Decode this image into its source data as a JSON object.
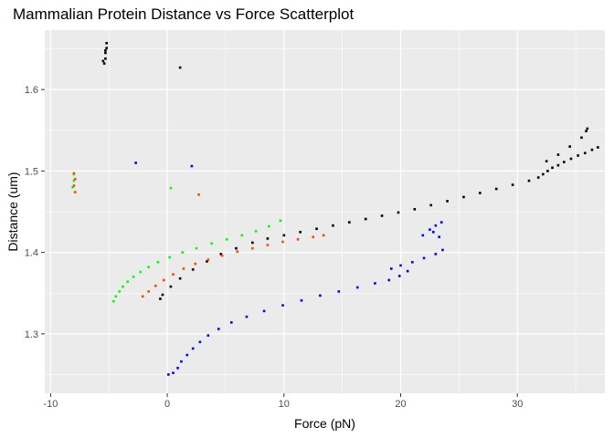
{
  "chart_data": {
    "type": "scatter",
    "title": "Mammalian Protein Distance vs Force Scatterplot",
    "xlabel": "Force (pN)",
    "ylabel": "Distance (um)",
    "xlim": [
      -10.5,
      37.5
    ],
    "ylim": [
      1.227,
      1.673
    ],
    "x_ticks": [
      -10,
      0,
      10,
      20,
      30
    ],
    "y_ticks": [
      1.3,
      1.4,
      1.5,
      1.6
    ],
    "grid": true,
    "background": "#ebebeb",
    "grid_color": "#ffffff",
    "series": [
      {
        "color": "#000000",
        "points": [
          [
            -5.4,
            1.632
          ],
          [
            -5.3,
            1.638
          ],
          [
            -5.3,
            1.645
          ],
          [
            -5.2,
            1.651
          ],
          [
            -5.2,
            1.657
          ],
          [
            -5.5,
            1.635
          ],
          [
            -5.3,
            1.648
          ],
          [
            1.1,
            1.627
          ],
          [
            -0.6,
            1.343
          ],
          [
            -0.4,
            1.348
          ],
          [
            0.3,
            1.358
          ],
          [
            1.1,
            1.368
          ],
          [
            2.2,
            1.379
          ],
          [
            3.4,
            1.389
          ],
          [
            4.6,
            1.398
          ],
          [
            5.9,
            1.405
          ],
          [
            7.3,
            1.412
          ],
          [
            8.6,
            1.417
          ],
          [
            10.0,
            1.421
          ],
          [
            11.4,
            1.425
          ],
          [
            12.8,
            1.429
          ],
          [
            14.2,
            1.433
          ],
          [
            15.6,
            1.437
          ],
          [
            17.0,
            1.441
          ],
          [
            18.4,
            1.445
          ],
          [
            19.8,
            1.449
          ],
          [
            21.2,
            1.453
          ],
          [
            22.6,
            1.458
          ],
          [
            24.0,
            1.463
          ],
          [
            25.4,
            1.468
          ],
          [
            26.8,
            1.473
          ],
          [
            28.2,
            1.478
          ],
          [
            29.6,
            1.483
          ],
          [
            31.0,
            1.488
          ],
          [
            31.8,
            1.492
          ],
          [
            32.2,
            1.496
          ],
          [
            32.6,
            1.5
          ],
          [
            33.0,
            1.504
          ],
          [
            33.5,
            1.507
          ],
          [
            34.0,
            1.511
          ],
          [
            34.6,
            1.515
          ],
          [
            35.2,
            1.519
          ],
          [
            35.8,
            1.522
          ],
          [
            36.4,
            1.526
          ],
          [
            36.9,
            1.529
          ],
          [
            32.5,
            1.512
          ],
          [
            33.5,
            1.52
          ],
          [
            34.5,
            1.53
          ],
          [
            35.5,
            1.541
          ],
          [
            35.9,
            1.549
          ],
          [
            36.0,
            1.552
          ]
        ]
      },
      {
        "color": "#00ff00",
        "points": [
          [
            -8.0,
            1.496
          ],
          [
            -8.0,
            1.488
          ],
          [
            -8.1,
            1.48
          ],
          [
            0.3,
            1.479
          ],
          [
            -4.6,
            1.34
          ],
          [
            -4.4,
            1.346
          ],
          [
            -4.1,
            1.352
          ],
          [
            -3.8,
            1.358
          ],
          [
            -3.4,
            1.364
          ],
          [
            -2.9,
            1.37
          ],
          [
            -2.3,
            1.376
          ],
          [
            -1.6,
            1.382
          ],
          [
            -0.8,
            1.388
          ],
          [
            0.2,
            1.394
          ],
          [
            1.3,
            1.4
          ],
          [
            2.5,
            1.405
          ],
          [
            3.8,
            1.411
          ],
          [
            5.1,
            1.416
          ],
          [
            6.4,
            1.421
          ],
          [
            7.6,
            1.426
          ],
          [
            8.7,
            1.432
          ],
          [
            9.7,
            1.439
          ]
        ]
      },
      {
        "color": "#ff4500",
        "points": [
          [
            -8.0,
            1.497
          ],
          [
            -7.9,
            1.49
          ],
          [
            -8.0,
            1.482
          ],
          [
            -7.9,
            1.474
          ],
          [
            2.7,
            1.471
          ],
          [
            -2.1,
            1.346
          ],
          [
            -1.6,
            1.352
          ],
          [
            -1.0,
            1.359
          ],
          [
            -0.3,
            1.366
          ],
          [
            0.5,
            1.373
          ],
          [
            1.4,
            1.38
          ],
          [
            2.4,
            1.386
          ],
          [
            3.5,
            1.391
          ],
          [
            4.7,
            1.396
          ],
          [
            6.0,
            1.401
          ],
          [
            7.3,
            1.405
          ],
          [
            8.6,
            1.409
          ],
          [
            9.9,
            1.413
          ],
          [
            11.2,
            1.416
          ],
          [
            12.5,
            1.419
          ],
          [
            13.4,
            1.421
          ]
        ]
      },
      {
        "color": "#0000ff",
        "points": [
          [
            -2.7,
            1.51
          ],
          [
            2.1,
            1.506
          ],
          [
            0.1,
            1.25
          ],
          [
            0.5,
            1.252
          ],
          [
            0.9,
            1.258
          ],
          [
            1.2,
            1.266
          ],
          [
            1.7,
            1.274
          ],
          [
            2.2,
            1.282
          ],
          [
            2.8,
            1.29
          ],
          [
            3.5,
            1.298
          ],
          [
            4.4,
            1.306
          ],
          [
            5.5,
            1.314
          ],
          [
            6.8,
            1.321
          ],
          [
            8.3,
            1.328
          ],
          [
            9.9,
            1.335
          ],
          [
            11.5,
            1.341
          ],
          [
            13.1,
            1.347
          ],
          [
            14.7,
            1.352
          ],
          [
            16.3,
            1.357
          ],
          [
            17.8,
            1.362
          ],
          [
            19.0,
            1.366
          ],
          [
            19.9,
            1.371
          ],
          [
            20.6,
            1.377
          ],
          [
            19.2,
            1.38
          ],
          [
            20.0,
            1.384
          ],
          [
            21.0,
            1.388
          ],
          [
            22.0,
            1.393
          ],
          [
            23.0,
            1.398
          ],
          [
            23.6,
            1.403
          ],
          [
            21.9,
            1.421
          ],
          [
            22.5,
            1.428
          ],
          [
            23.0,
            1.433
          ],
          [
            23.5,
            1.437
          ],
          [
            22.8,
            1.425
          ],
          [
            23.3,
            1.419
          ]
        ]
      }
    ]
  }
}
